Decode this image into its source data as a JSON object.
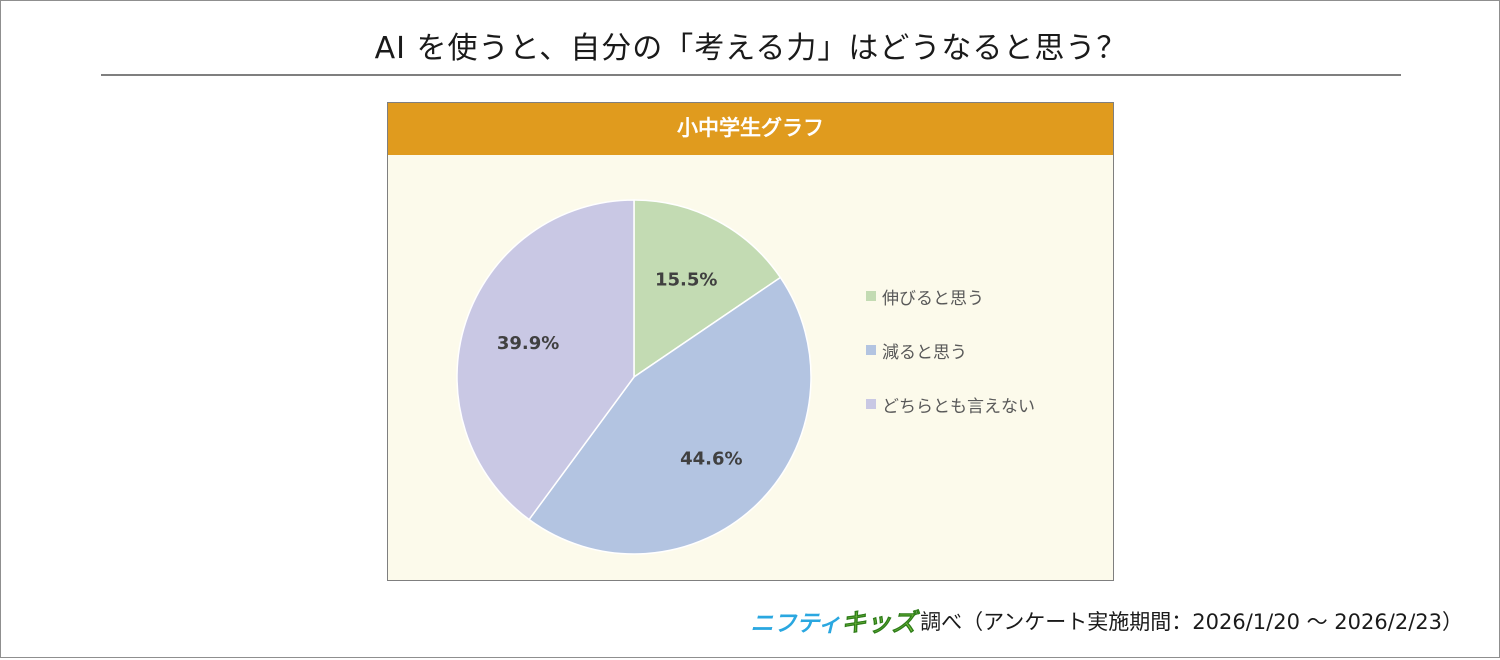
{
  "title": "AI を使うと、自分の「考える力」はどうなると思う？",
  "colors": {
    "header": "#e09b1e",
    "panel_background": "#fcfaeb",
    "slice_1": "#c3dbb3",
    "slice_2": "#b3c4e1",
    "slice_3": "#c9c8e4",
    "brand_blue": "#2aa7e0",
    "brand_green": "#7bc13e"
  },
  "chart_data": {
    "type": "pie",
    "title": "小中学生グラフ",
    "categories": [
      "伸びると思う",
      "減ると思う",
      "どちらとも言えない"
    ],
    "values": [
      15.5,
      44.6,
      39.9
    ],
    "data_labels": [
      "15.5%",
      "44.6%",
      "39.9%"
    ],
    "legend": "right",
    "start_angle": "12 o'clock, clockwise"
  },
  "footer": {
    "brand_part1": "ニフティ",
    "brand_part2": "キッズ",
    "text": "調べ（アンケート実施期間：2026/1/20 〜 2026/2/23）"
  }
}
